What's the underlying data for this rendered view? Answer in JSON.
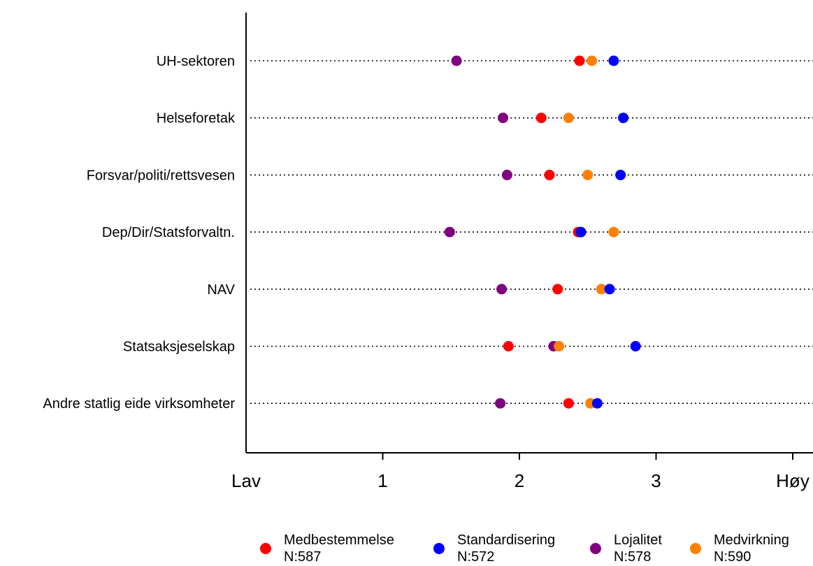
{
  "chart_data": {
    "type": "scatter",
    "orientation": "horizontal-dot-plot",
    "xlim": [
      0,
      4.15
    ],
    "x_ticks": [
      {
        "value": 0,
        "label": "Lav"
      },
      {
        "value": 1,
        "label": "1"
      },
      {
        "value": 2,
        "label": "2"
      },
      {
        "value": 3,
        "label": "3"
      },
      {
        "value": 4,
        "label": "Høy"
      }
    ],
    "categories": [
      "UH-sektoren",
      "Helseforetak",
      "Forsvar/politi/rettsvesen",
      "Dep/Dir/Statsforvaltn.",
      "NAV",
      "Statsaksjeselskap",
      "Andre statlig eide virksomheter"
    ],
    "grid": "dotted horizontal lines per category",
    "legend_position": "bottom",
    "series": [
      {
        "name": "Lojalitet",
        "n_label": "N:578",
        "color": "#800080",
        "values": [
          1.54,
          1.88,
          1.91,
          1.49,
          1.87,
          2.25,
          1.86
        ]
      },
      {
        "name": "Medbestemmelse",
        "n_label": "N:587",
        "color": "#ff0000",
        "values": [
          2.44,
          2.16,
          2.22,
          2.43,
          2.28,
          1.92,
          2.36
        ]
      },
      {
        "name": "Medvirkning",
        "n_label": "N:590",
        "color": "#ff8000",
        "values": [
          2.53,
          2.36,
          2.5,
          2.69,
          2.6,
          2.29,
          2.52
        ]
      },
      {
        "name": "Standardisering",
        "n_label": "N:572",
        "color": "#0000ff",
        "values": [
          2.69,
          2.76,
          2.74,
          2.45,
          2.66,
          2.85,
          2.57
        ]
      }
    ],
    "legend_order": [
      "Medbestemmelse",
      "Standardisering",
      "Lojalitet",
      "Medvirkning"
    ]
  }
}
